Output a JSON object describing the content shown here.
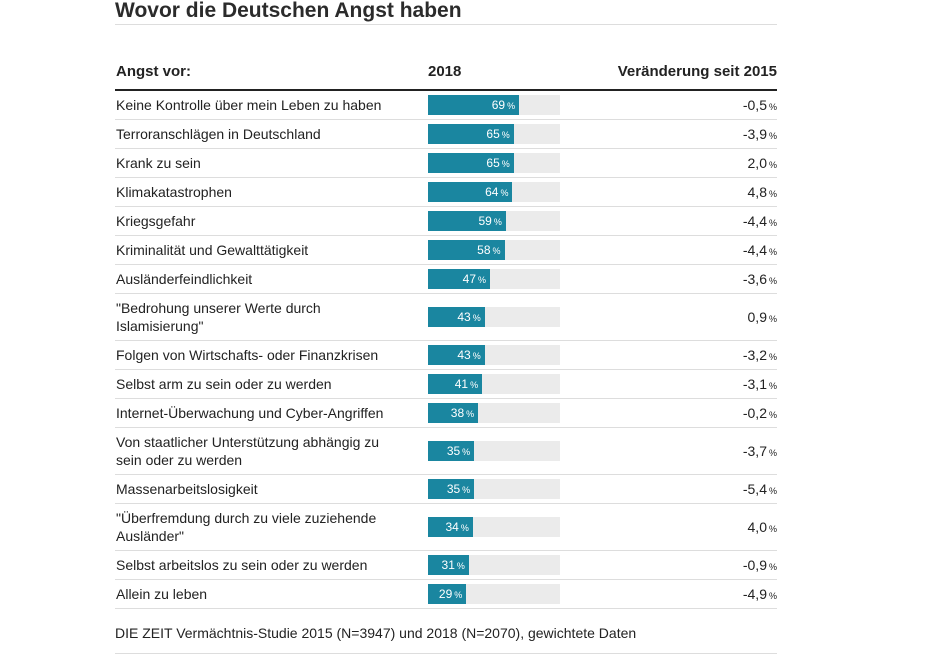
{
  "chart_data": {
    "type": "bar",
    "title": "Wovor die Deutschen Angst haben",
    "header": {
      "label": "Angst vor:",
      "year": "2018",
      "change": "Veränderung seit 2015"
    },
    "unit": "%",
    "xlim": [
      0,
      100
    ],
    "bar_color": "#1a86a0",
    "track_color": "#ebebeb",
    "rows": [
      {
        "label": "Keine Kontrolle über mein Leben zu haben",
        "value": 69,
        "change": "-0,5"
      },
      {
        "label": "Terroranschlägen in Deutschland",
        "value": 65,
        "change": "-3,9"
      },
      {
        "label": "Krank zu sein",
        "value": 65,
        "change": "2,0"
      },
      {
        "label": "Klimakatastrophen",
        "value": 64,
        "change": "4,8"
      },
      {
        "label": "Kriegsgefahr",
        "value": 59,
        "change": "-4,4"
      },
      {
        "label": "Kriminalität und Gewalttätigkeit",
        "value": 58,
        "change": "-4,4"
      },
      {
        "label": "Ausländerfeindlichkeit",
        "value": 47,
        "change": "-3,6"
      },
      {
        "label": "\"Bedrohung unserer Werte durch Islamisierung\"",
        "value": 43,
        "change": "0,9"
      },
      {
        "label": "Folgen von Wirtschafts- oder Finanzkrisen",
        "value": 43,
        "change": "-3,2"
      },
      {
        "label": "Selbst arm zu sein oder zu werden",
        "value": 41,
        "change": "-3,1"
      },
      {
        "label": "Internet-Überwachung und Cyber-Angriffen",
        "value": 38,
        "change": "-0,2"
      },
      {
        "label": "Von staatlicher Unterstützung abhängig zu sein oder zu werden",
        "value": 35,
        "change": "-3,7"
      },
      {
        "label": "Massenarbeitslosigkeit",
        "value": 35,
        "change": "-5,4"
      },
      {
        "label": "\"Überfremdung durch zu viele zuziehende Ausländer\"",
        "value": 34,
        "change": "4,0"
      },
      {
        "label": "Selbst arbeitslos zu sein oder zu werden",
        "value": 31,
        "change": "-0,9"
      },
      {
        "label": "Allein zu leben",
        "value": 29,
        "change": "-4,9"
      }
    ],
    "source": "DIE ZEIT Vermächtnis-Studie 2015 (N=3947) und 2018 (N=2070), gewichtete Daten"
  }
}
